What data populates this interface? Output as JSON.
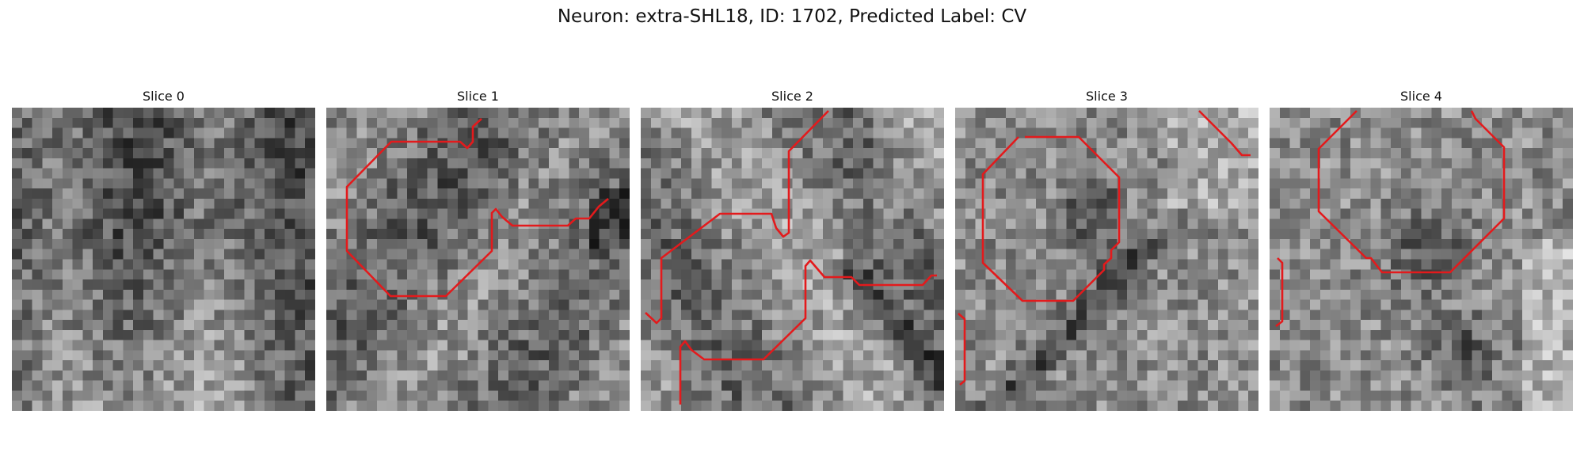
{
  "figure": {
    "title": "Neuron: extra-SHL18, ID: 1702, Predicted Label: CV",
    "contour_color": "#e31a1c",
    "colormap": "gray"
  },
  "slices": [
    {
      "title": "Slice 0"
    },
    {
      "title": "Slice 1"
    },
    {
      "title": "Slice 2"
    },
    {
      "title": "Slice 3"
    },
    {
      "title": "Slice 4"
    }
  ]
}
